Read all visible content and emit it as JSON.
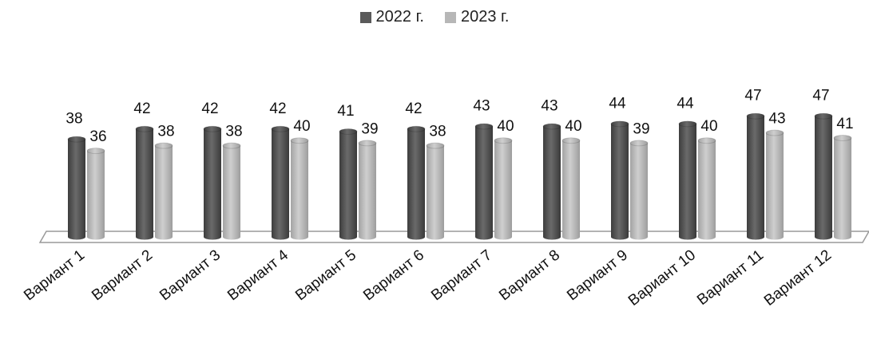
{
  "chart_data": {
    "type": "bar",
    "categories": [
      "Вариант 1",
      "Вариант 2",
      "Вариант 3",
      "Вариант 4",
      "Вариант 5",
      "Вариант 6",
      "Вариант 7",
      "Вариант 8",
      "Вариант 9",
      "Вариант 10",
      "Вариант 11",
      "Вариант 12"
    ],
    "series": [
      {
        "name": "2022 г.",
        "values": [
          38,
          42,
          42,
          42,
          41,
          42,
          43,
          43,
          44,
          44,
          47,
          47
        ],
        "color": "#5a5a5a"
      },
      {
        "name": "2023 г.",
        "values": [
          36,
          38,
          38,
          40,
          39,
          38,
          40,
          40,
          39,
          40,
          43,
          41
        ],
        "color": "#b7b7b7"
      }
    ],
    "legend_position": "top-center",
    "grid": false
  }
}
